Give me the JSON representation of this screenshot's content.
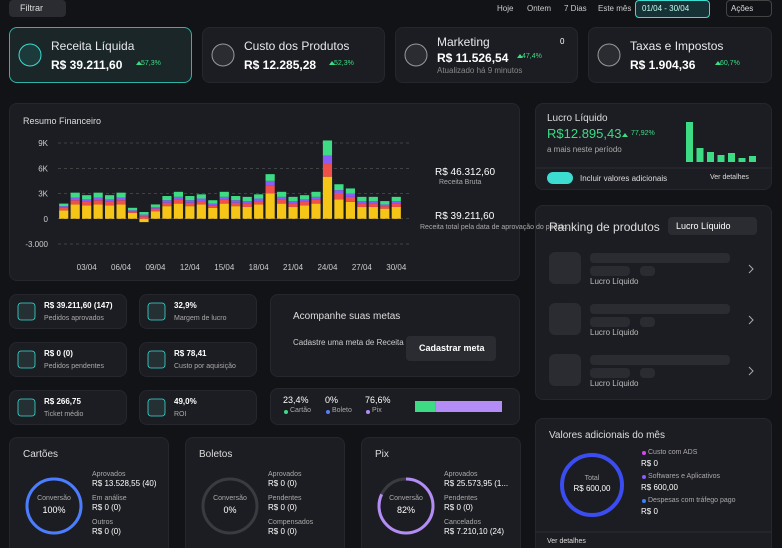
{
  "toolbar": {
    "filter": "Filtrar",
    "ranges": [
      "Hoje",
      "Ontem",
      "7 Dias",
      "Este mês"
    ],
    "date": "01/04 - 30/04",
    "actions": "Ações"
  },
  "kpis": [
    {
      "label": "Receita Líquida",
      "value": "R$ 39.211,60",
      "change": "57,3%"
    },
    {
      "label": "Custo dos Produtos",
      "value": "R$ 12.285,28",
      "change": "52,3%"
    },
    {
      "label": "Marketing",
      "value": "R$ 11.526,54",
      "change": "47,4%",
      "note": "Atualizado há 9 minutos",
      "badge": "0"
    },
    {
      "label": "Taxas e Impostos",
      "value": "R$ 1.904,36",
      "change": "60,7%"
    }
  ],
  "resumo": {
    "title": "Resumo Financeiro",
    "gross": "R$ 46.312,60",
    "gross_label": "Receita Bruta",
    "net": "R$ 39.211,60",
    "net_label": "Receita total pela data de aprovação do pedido.",
    "chart": {
      "type": "bar",
      "stacked": true,
      "categories": [
        null,
        null,
        "03/04",
        null,
        null,
        "06/04",
        null,
        null,
        "09/04",
        null,
        null,
        "12/04",
        null,
        null,
        "15/04",
        null,
        null,
        "18/04",
        null,
        null,
        "21/04",
        null,
        null,
        "24/04",
        null,
        null,
        "27/04",
        null,
        null,
        "30/04"
      ],
      "ylim": [
        -3000,
        9000
      ],
      "yticks": [
        {
          "value": 9000,
          "label": "9K"
        },
        {
          "value": 6000,
          "label": "6K"
        },
        {
          "value": 3000,
          "label": "3K"
        },
        0,
        {
          "value": -3000,
          "label": "-3.000"
        }
      ],
      "grid": true,
      "series": [
        {
          "color": "#f5c518",
          "values": [
            1000,
            1700,
            1600,
            1700,
            1600,
            1700,
            700,
            -400,
            900,
            1500,
            1800,
            1500,
            1700,
            1300,
            1800,
            1500,
            1400,
            1700,
            3000,
            1800,
            1400,
            1600,
            1800,
            5000,
            2300,
            2000,
            1400,
            1400,
            1200,
            1400
          ]
        },
        {
          "color": "#f0504a",
          "values": [
            300,
            500,
            400,
            500,
            400,
            500,
            200,
            300,
            300,
            400,
            500,
            400,
            400,
            300,
            500,
            400,
            400,
            400,
            900,
            500,
            400,
            400,
            500,
            1500,
            700,
            600,
            400,
            400,
            300,
            400
          ]
        },
        {
          "color": "#8b5cf6",
          "values": [
            200,
            300,
            300,
            300,
            300,
            300,
            100,
            200,
            200,
            300,
            300,
            300,
            300,
            200,
            300,
            300,
            300,
            300,
            600,
            300,
            300,
            300,
            300,
            1000,
            400,
            400,
            300,
            300,
            200,
            300
          ]
        },
        {
          "color": "#3ddc84",
          "values": [
            300,
            600,
            500,
            600,
            500,
            600,
            300,
            300,
            300,
            500,
            600,
            500,
            500,
            400,
            600,
            500,
            500,
            500,
            800,
            600,
            500,
            500,
            600,
            1800,
            700,
            600,
            500,
            500,
            400,
            500
          ]
        }
      ]
    }
  },
  "lucro": {
    "title": "Lucro Líquido",
    "value": "R$12.895,43",
    "change": "77,92%",
    "note": "a mais neste período",
    "toggle": "Incluir valores adicionais",
    "link": "Ver detalhes",
    "bars": {
      "color": "#3ddc84",
      "values": [
        40,
        14,
        10,
        7,
        9,
        4,
        6
      ]
    }
  },
  "metrics": [
    {
      "value": "R$ 39.211,60 (147)",
      "label": "Pedidos aprovados"
    },
    {
      "value": "32,9%",
      "label": "Margem de lucro"
    },
    {
      "value": "R$ 0 (0)",
      "label": "Pedidos pendentes"
    },
    {
      "value": "R$ 78,41",
      "label": "Custo por aquisição"
    },
    {
      "value": "R$ 266,75",
      "label": "Ticket médio"
    },
    {
      "value": "49,0%",
      "label": "ROI"
    }
  ],
  "metas": {
    "title": "Acompanhe suas metas",
    "text": "Cadastre uma meta de Receita Líquida ou Lucro Líquido",
    "button": "Cadastrar meta"
  },
  "split": {
    "values": [
      23.4,
      0,
      76.6
    ],
    "value_labels": [
      "23,4%",
      "0%",
      "76,6%"
    ],
    "names": [
      "Cartão",
      "Boleto",
      "Pix"
    ],
    "colors": [
      "#3ddc84",
      "#5b7cfa",
      "#b48cf5"
    ]
  },
  "ranking": {
    "title": "Ranking de produtos",
    "select": "Lucro Líquido",
    "items": [
      "Lucro Líquido",
      "Lucro Líquido",
      "Lucro Líquido"
    ]
  },
  "payments": [
    {
      "title": "Cartões",
      "ring_label": "Conversão",
      "ring_value": 100,
      "ring_text": "100%",
      "color": "#4a7dff",
      "rows": [
        [
          "Aprovados",
          "R$ 13.528,55 (40)"
        ],
        [
          "Em análise",
          "R$ 0 (0)"
        ],
        [
          "Outros",
          "R$ 0 (0)"
        ]
      ]
    },
    {
      "title": "Boletos",
      "ring_label": "Conversão",
      "ring_value": 0,
      "ring_text": "0%",
      "color": "#888",
      "rows": [
        [
          "Aprovados",
          "R$ 0 (0)"
        ],
        [
          "Pendentes",
          "R$ 0 (0)"
        ],
        [
          "Compensados",
          "R$ 0 (0)"
        ]
      ]
    },
    {
      "title": "Pix",
      "ring_label": "Conversão",
      "ring_value": 82,
      "ring_text": "82%",
      "color": "#b48cf5",
      "rows": [
        [
          "Aprovados",
          "R$ 25.573,95 (1..."
        ],
        [
          "Pendentes",
          "R$ 0 (0)"
        ],
        [
          "Cancelados",
          "R$ 7.210,10 (24)"
        ]
      ]
    }
  ],
  "adicionais": {
    "title": "Valores adicionais do mês",
    "total_label": "Total",
    "total": "R$ 600,00",
    "items": [
      [
        "Custo com ADS",
        "R$ 0"
      ],
      [
        "Softwares e Aplicativos",
        "R$ 600,00"
      ],
      [
        "Despesas com tráfego pago",
        "R$ 0"
      ]
    ],
    "link": "Ver detalhes"
  }
}
